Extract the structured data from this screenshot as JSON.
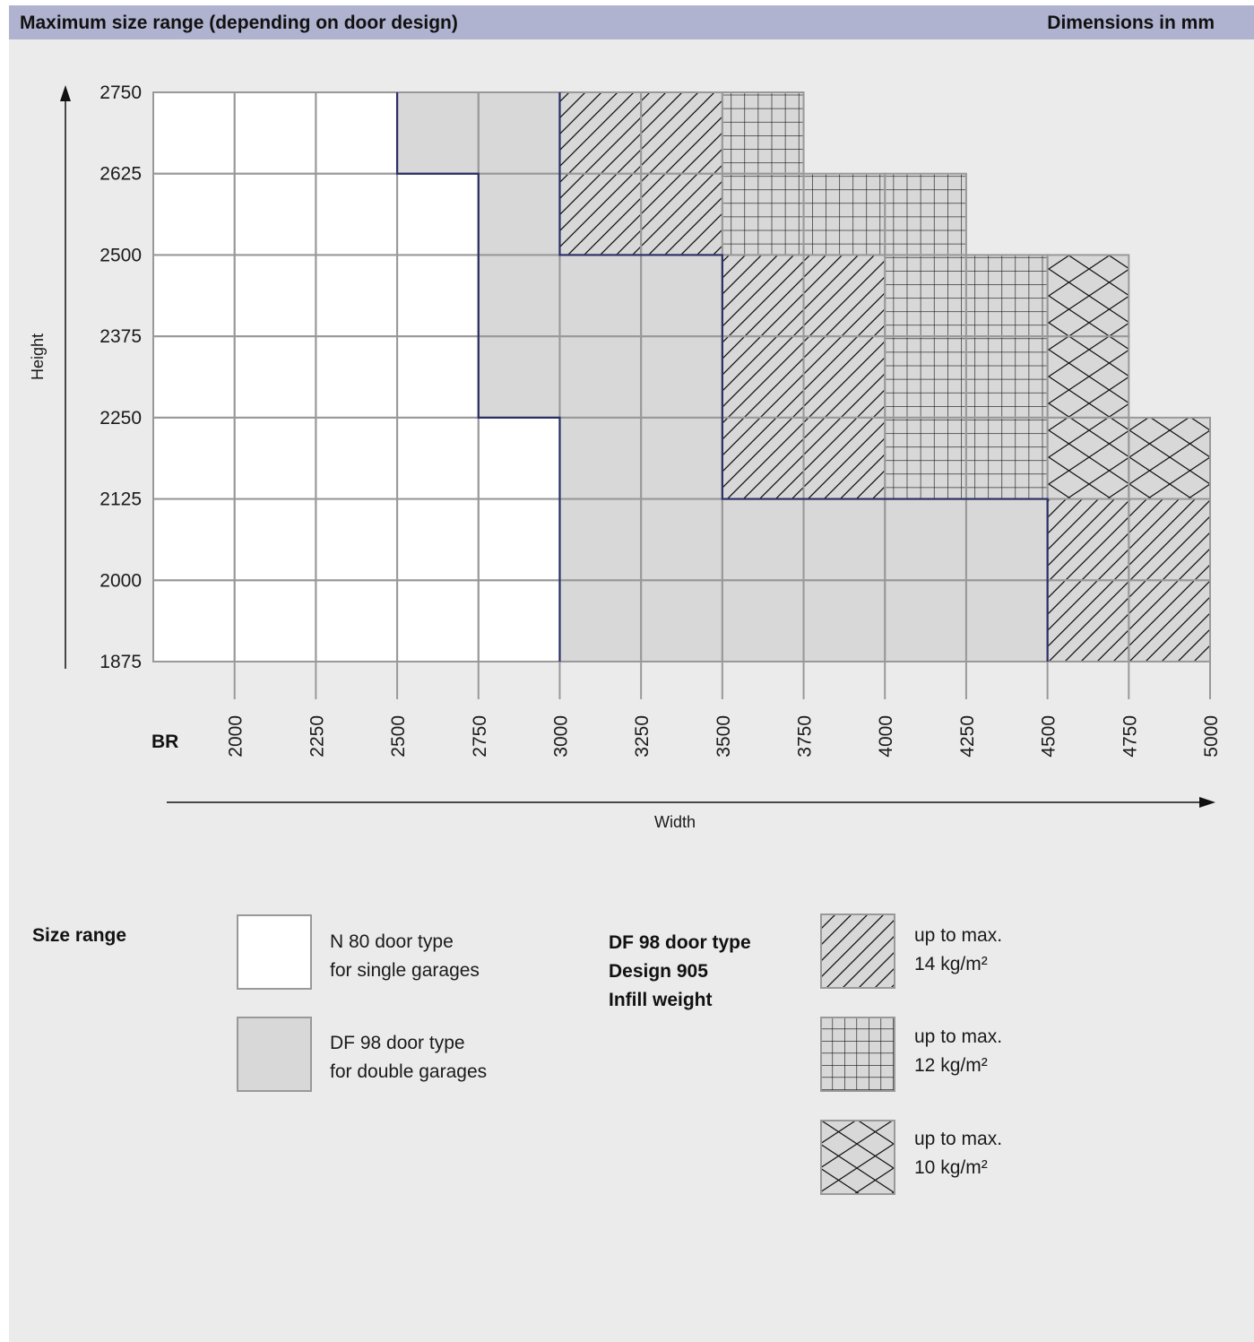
{
  "header": {
    "title": "Maximum size range (depending on door design)",
    "units": "Dimensions in mm"
  },
  "colors": {
    "header_bg": "#b0b3cf",
    "panel_bg": "#ebebeb",
    "n80_fill": "#ffffff",
    "df98_fill": "#d8d8d8",
    "grid": "#999999",
    "boundary": "#2b2f66"
  },
  "chart_data": {
    "type": "heatmap",
    "xlabel": "Width",
    "ylabel": "Height",
    "x_axis_prefix": "BR",
    "x_ticks": [
      2000,
      2250,
      2500,
      2750,
      3000,
      3250,
      3500,
      3750,
      4000,
      4250,
      4500,
      4750,
      5000
    ],
    "y_ticks": [
      1875,
      2000,
      2125,
      2250,
      2375,
      2500,
      2625,
      2750
    ],
    "x_range": [
      1750,
      5000
    ],
    "y_range": [
      1875,
      2750
    ],
    "regions": [
      {
        "type": "N 80",
        "x": [
          1750,
          2500
        ],
        "y": [
          1875,
          2750
        ]
      },
      {
        "type": "N 80",
        "x": [
          2500,
          2750
        ],
        "y": [
          1875,
          2625
        ]
      },
      {
        "type": "N 80",
        "x": [
          2750,
          3000
        ],
        "y": [
          1875,
          2250
        ]
      },
      {
        "type": "DF 98",
        "x": [
          2500,
          3000
        ],
        "y": [
          2625,
          2750
        ]
      },
      {
        "type": "DF 98",
        "x": [
          2750,
          3000
        ],
        "y": [
          2250,
          2625
        ]
      },
      {
        "type": "DF 98",
        "x": [
          3000,
          3500
        ],
        "y": [
          1875,
          2500
        ]
      },
      {
        "type": "DF 98",
        "x": [
          3500,
          4500
        ],
        "y": [
          1875,
          2125
        ]
      }
    ],
    "infill_regions": [
      {
        "pattern": "diagonal",
        "x": [
          3000,
          3500
        ],
        "y": [
          2500,
          2750
        ]
      },
      {
        "pattern": "grid",
        "x": [
          3500,
          3750
        ],
        "y": [
          2625,
          2750
        ]
      },
      {
        "pattern": "grid",
        "x": [
          3500,
          4250
        ],
        "y": [
          2500,
          2625
        ]
      },
      {
        "pattern": "diagonal",
        "x": [
          3500,
          4000
        ],
        "y": [
          2125,
          2500
        ]
      },
      {
        "pattern": "grid",
        "x": [
          4000,
          4500
        ],
        "y": [
          2125,
          2500
        ]
      },
      {
        "pattern": "crosshatch",
        "x": [
          4500,
          4750
        ],
        "y": [
          2250,
          2500
        ]
      },
      {
        "pattern": "crosshatch",
        "x": [
          4500,
          5000
        ],
        "y": [
          2125,
          2250
        ]
      },
      {
        "pattern": "diagonal",
        "x": [
          4500,
          5000
        ],
        "y": [
          1875,
          2125
        ]
      }
    ]
  },
  "legend": {
    "size_range_label": "Size range",
    "n80": {
      "line1": "N 80 door type",
      "line2": "for single garages"
    },
    "df98": {
      "line1": "DF 98 door type",
      "line2": "for double garages"
    },
    "infill": {
      "line1": "DF 98 door type",
      "line2": "Design 905",
      "line3": "Infill weight"
    },
    "weights": [
      {
        "pattern": "diagonal",
        "line1": "up to max.",
        "line2": "14 kg/m²"
      },
      {
        "pattern": "grid",
        "line1": "up to max.",
        "line2": "12 kg/m²"
      },
      {
        "pattern": "crosshatch",
        "line1": "up to max.",
        "line2": "10 kg/m²"
      }
    ]
  }
}
